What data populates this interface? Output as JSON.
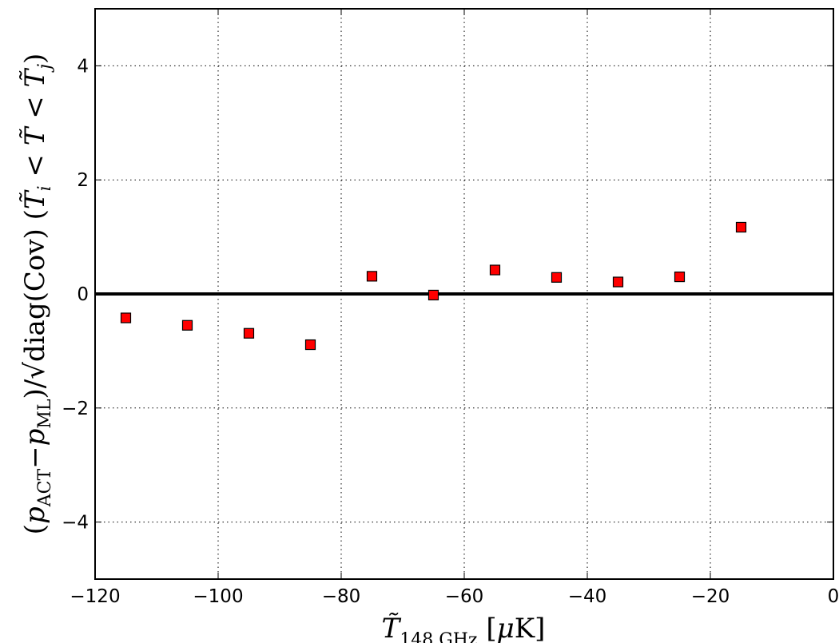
{
  "chart_data": {
    "type": "scatter",
    "xlabel": "T̃ 148 GHz [μK]",
    "ylabel": "(p ACT − p ML)/√diag(Cov)  (T̃ i < T̃ < T̃ j)",
    "xlim": [
      -120,
      0
    ],
    "ylim": [
      -5,
      5
    ],
    "x_ticks": [
      -120,
      -100,
      -80,
      -60,
      -40,
      -20,
      0
    ],
    "y_ticks": [
      -4,
      -2,
      0,
      2,
      4
    ],
    "x_tick_labels": [
      "−120",
      "−100",
      "−80",
      "−60",
      "−40",
      "−20",
      "0"
    ],
    "y_tick_labels": [
      "−4",
      "−2",
      "0",
      "2",
      "4"
    ],
    "grid": true,
    "reference_line_y": 0,
    "marker": "square",
    "marker_color": "#ff0000",
    "series": [
      {
        "x": [
          -115,
          -105,
          -95,
          -85,
          -75,
          -65,
          -55,
          -45,
          -35,
          -25,
          -15
        ],
        "y": [
          -0.42,
          -0.55,
          -0.69,
          -0.89,
          0.31,
          -0.02,
          0.42,
          0.29,
          0.21,
          0.3,
          1.17
        ]
      }
    ]
  }
}
